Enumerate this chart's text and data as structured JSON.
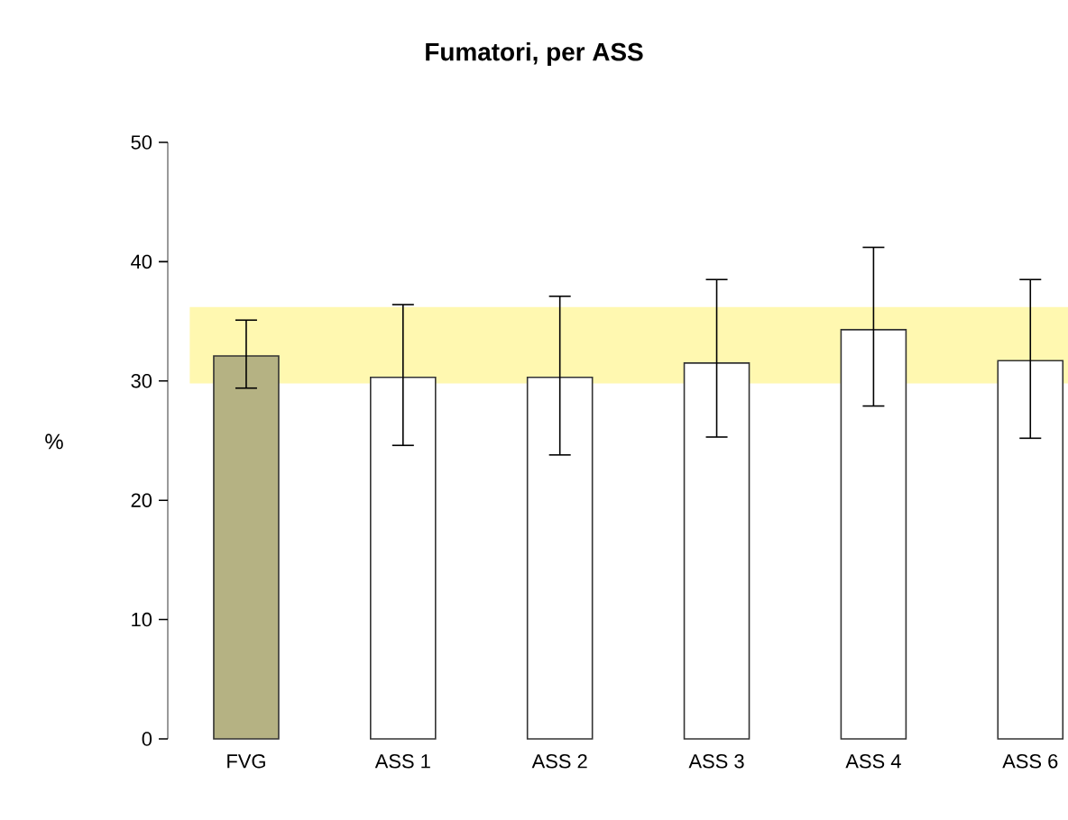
{
  "chart_data": {
    "type": "bar",
    "title": "Fumatori, per ASS",
    "ylabel": "%",
    "categories": [
      "FVG",
      "ASS 1",
      "ASS 2",
      "ASS 3",
      "ASS 4",
      "ASS 6"
    ],
    "values": [
      32.1,
      30.3,
      30.3,
      31.5,
      34.3,
      31.7
    ],
    "errors": [
      [
        29.4,
        35.1
      ],
      [
        24.6,
        36.4
      ],
      [
        23.8,
        37.1
      ],
      [
        25.3,
        38.5
      ],
      [
        27.9,
        41.2
      ],
      [
        25.2,
        38.5
      ]
    ],
    "colors": [
      "#b5b283",
      "#ffffff",
      "#ffffff",
      "#ffffff",
      "#ffffff",
      "#ffffff"
    ],
    "ylim": [
      0,
      50
    ],
    "yticks": [
      0,
      10,
      20,
      30,
      40,
      50
    ],
    "bands": [
      {
        "axis": "y",
        "from": 29.8,
        "to": 36.2,
        "color": "#fff8b0"
      }
    ],
    "grid": false
  }
}
